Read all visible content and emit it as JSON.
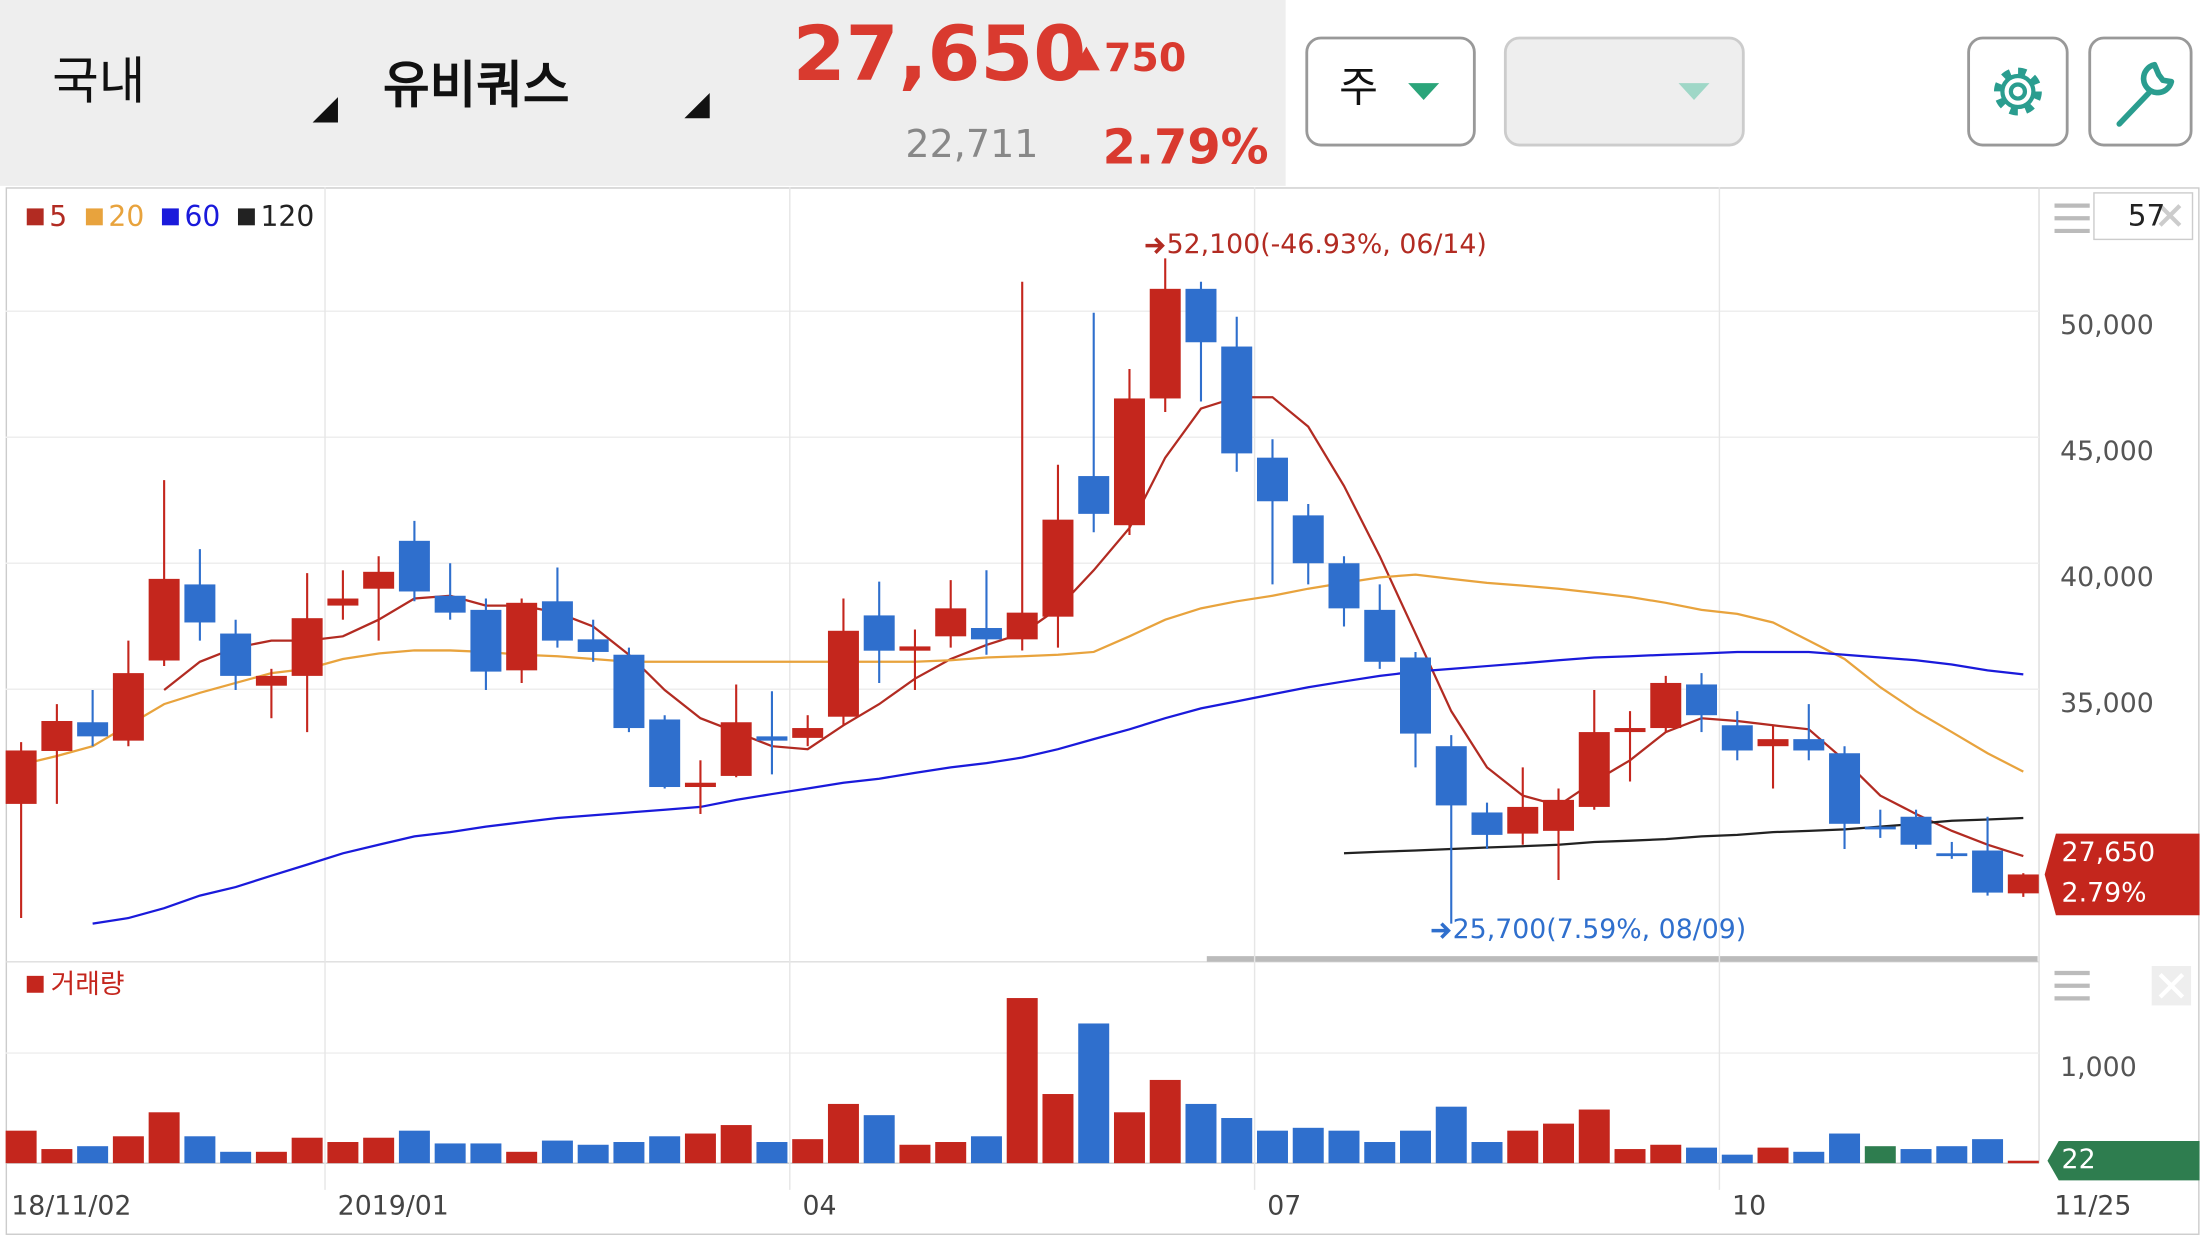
{
  "header": {
    "market": "국내",
    "stock": "유비쿼스",
    "price": "27,650",
    "change": "750",
    "volume": "22,711",
    "change_pct": "2.79%"
  },
  "toolbar": {
    "period": "주"
  },
  "chart_data": {
    "type": "candlestick",
    "visible_count": 57,
    "categories": [
      "18/11/02",
      null,
      null,
      null,
      null,
      null,
      null,
      null,
      null,
      "2019/01",
      null,
      null,
      null,
      null,
      null,
      null,
      null,
      null,
      null,
      null,
      null,
      null,
      "04",
      null,
      null,
      null,
      null,
      null,
      null,
      null,
      null,
      null,
      null,
      null,
      null,
      "07",
      null,
      null,
      null,
      null,
      null,
      null,
      null,
      null,
      null,
      null,
      null,
      null,
      "10",
      null,
      null,
      null,
      null,
      null,
      null,
      null,
      "11/25"
    ],
    "open": [
      30450,
      32550,
      33690,
      32960,
      36140,
      39160,
      37210,
      35140,
      35530,
      38320,
      38990,
      40890,
      38710,
      38150,
      35750,
      38490,
      36980,
      36370,
      33800,
      31120,
      31560,
      33130,
      33070,
      33910,
      37930,
      36530,
      37100,
      37430,
      36980,
      37880,
      43460,
      41510,
      46540,
      50890,
      48600,
      44190,
      41900,
      40000,
      38150,
      36260,
      32740,
      30110,
      29270,
      29380,
      30330,
      33300,
      33460,
      35190,
      33570,
      32740,
      33020,
      32460,
      29550,
      29940,
      28490,
      28600,
      26900
    ],
    "high": [
      32900,
      34410,
      34970,
      36930,
      43300,
      40560,
      37760,
      35810,
      39610,
      39720,
      40280,
      41680,
      40000,
      38600,
      38600,
      39830,
      37760,
      36650,
      33970,
      32180,
      35190,
      34920,
      33970,
      38600,
      39270,
      37370,
      39330,
      39720,
      51170,
      43910,
      49940,
      47710,
      52100,
      51170,
      49780,
      44920,
      42350,
      40280,
      39160,
      36480,
      33180,
      30500,
      31900,
      31060,
      34970,
      34130,
      35530,
      35640,
      34130,
      33570,
      34410,
      32740,
      30220,
      30220,
      28940,
      29940,
      27700
    ],
    "low": [
      25920,
      30450,
      32740,
      32740,
      35920,
      36930,
      34970,
      33850,
      33300,
      37760,
      36930,
      38490,
      37760,
      34970,
      35250,
      36650,
      36090,
      33300,
      31060,
      30050,
      31510,
      31620,
      32740,
      33570,
      35250,
      34970,
      36650,
      36370,
      36540,
      36650,
      41230,
      41120,
      46000,
      46420,
      43630,
      39160,
      39160,
      37490,
      35810,
      31900,
      25700,
      28660,
      28830,
      27430,
      30220,
      31340,
      33300,
      33300,
      32180,
      31060,
      32180,
      28660,
      29100,
      28660,
      28270,
      26810,
      26760
    ],
    "close": [
      32570,
      33740,
      33130,
      35640,
      39380,
      37650,
      35530,
      35530,
      37820,
      38600,
      39660,
      38880,
      38040,
      35700,
      38430,
      36930,
      36480,
      33460,
      31120,
      31290,
      33690,
      32960,
      33460,
      37320,
      36530,
      36700,
      38210,
      36980,
      38040,
      41730,
      41960,
      46540,
      50890,
      48770,
      44360,
      42460,
      40000,
      38210,
      36090,
      33240,
      30390,
      29220,
      30330,
      30610,
      33300,
      33460,
      35250,
      33970,
      32570,
      33020,
      32570,
      29660,
      29550,
      28830,
      28380,
      26930,
      27650
    ],
    "up_color": "#c4261d",
    "down_color": "#2f6fcd",
    "ylim": [
      24520,
      54920
    ],
    "yticks": [
      {
        "value": 35000,
        "label": "35,000"
      },
      {
        "value": 40000,
        "label": "40,000"
      },
      {
        "value": 45000,
        "label": "45,000"
      },
      {
        "value": 50000,
        "label": "50,000"
      }
    ],
    "grid": true,
    "moving_averages": [
      {
        "name": "5",
        "color": "#b22b22",
        "values": [
          null,
          null,
          null,
          null,
          34970,
          36090,
          36650,
          36930,
          36930,
          37100,
          37760,
          38600,
          38710,
          38320,
          38320,
          38040,
          37490,
          36370,
          34970,
          33850,
          33300,
          32740,
          32620,
          33570,
          34410,
          35420,
          36200,
          36760,
          37210,
          38210,
          39720,
          41400,
          44190,
          46140,
          46590,
          46590,
          45420,
          43070,
          40280,
          37210,
          34130,
          31900,
          30780,
          30390,
          31340,
          32180,
          33300,
          33850,
          33740,
          33570,
          33410,
          32180,
          30780,
          30050,
          29380,
          28830,
          28380
        ]
      },
      {
        "name": "20",
        "color": "#e8a33d",
        "values": [
          32010,
          32350,
          32740,
          33570,
          34410,
          34860,
          35250,
          35640,
          35810,
          36200,
          36420,
          36540,
          36540,
          36480,
          36370,
          36310,
          36200,
          36090,
          36090,
          36090,
          36090,
          36090,
          36090,
          36090,
          36090,
          36090,
          36150,
          36260,
          36310,
          36370,
          36480,
          37100,
          37760,
          38210,
          38490,
          38710,
          38990,
          39220,
          39440,
          39550,
          39380,
          39220,
          39110,
          38990,
          38830,
          38660,
          38430,
          38150,
          37990,
          37650,
          36930,
          36200,
          35080,
          34130,
          33300,
          32460,
          31730
        ]
      },
      {
        "name": "60",
        "color": "#1a1adb",
        "values": [
          null,
          null,
          25700,
          25920,
          26310,
          26810,
          27150,
          27600,
          28040,
          28490,
          28830,
          29160,
          29330,
          29550,
          29720,
          29890,
          30000,
          30110,
          30220,
          30330,
          30610,
          30840,
          31060,
          31290,
          31450,
          31680,
          31900,
          32070,
          32290,
          32620,
          33020,
          33410,
          33850,
          34240,
          34520,
          34800,
          35080,
          35310,
          35530,
          35700,
          35810,
          35920,
          36030,
          36150,
          36260,
          36310,
          36370,
          36420,
          36480,
          36480,
          36480,
          36370,
          36260,
          36150,
          35980,
          35750,
          35590
        ]
      },
      {
        "name": "120",
        "color": "#222222",
        "values": [
          null,
          null,
          null,
          null,
          null,
          null,
          null,
          null,
          null,
          null,
          null,
          null,
          null,
          null,
          null,
          null,
          null,
          null,
          null,
          null,
          null,
          null,
          null,
          null,
          null,
          null,
          null,
          null,
          null,
          null,
          null,
          null,
          null,
          null,
          null,
          null,
          null,
          28490,
          28550,
          28600,
          28660,
          28720,
          28770,
          28830,
          28940,
          28990,
          29050,
          29160,
          29220,
          29330,
          29380,
          29440,
          29550,
          29660,
          29780,
          29830,
          29890
        ]
      }
    ],
    "annotations": [
      {
        "text": "52,100(-46.93%, 06/14)",
        "color": "#b22b22"
      },
      {
        "text": "25,700(7.59%, 08/09)",
        "color": "#2f6fcd"
      }
    ],
    "volume": {
      "title": "거래량",
      "ylim": [
        0,
        1740
      ],
      "yticks": [
        {
          "value": 1000,
          "label": "1,000"
        }
      ],
      "flat_color": "#2e7d4f",
      "label_color": "#2e7d4f",
      "values": [
        295,
        128,
        154,
        244,
        462,
        244,
        103,
        103,
        231,
        192,
        231,
        295,
        179,
        179,
        103,
        205,
        167,
        192,
        244,
        269,
        346,
        192,
        218,
        538,
        436,
        167,
        192,
        244,
        1500,
        628,
        1269,
        462,
        756,
        538,
        410,
        295,
        321,
        295,
        192,
        295,
        513,
        192,
        295,
        359,
        487,
        128,
        167,
        141,
        77,
        141,
        103,
        269,
        154,
        128,
        154,
        218,
        22
      ]
    }
  }
}
